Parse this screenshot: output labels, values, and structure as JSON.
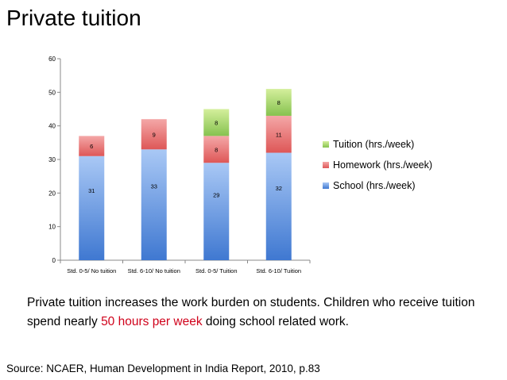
{
  "title": "Private tuition",
  "note": {
    "text_before": "Private tuition increases the work burden on students. Children who receive tuition spend nearly ",
    "highlight": "50 hours per week",
    "text_after": " doing school related work."
  },
  "source": "Source: NCAER, Human Development in India Report, 2010, p.83",
  "colors": {
    "school": "#5b8fdb",
    "homework": "#e76f6f",
    "tuition": "#9fd46b",
    "highlight": "#d0021b"
  },
  "chart_data": {
    "type": "bar",
    "stacked": true,
    "categories": [
      "Std. 0-5/ No tuition",
      "Std. 6-10/ No tuition",
      "Std. 0-5/ Tuition",
      "Std. 6-10/ Tuition"
    ],
    "series": [
      {
        "name": "School (hrs./week)",
        "values": [
          31,
          33,
          29,
          32
        ]
      },
      {
        "name": "Homework (hrs./week)",
        "values": [
          6,
          9,
          8,
          11
        ]
      },
      {
        "name": "Tuition (hrs./week)",
        "values": [
          0,
          0,
          8,
          8
        ]
      }
    ],
    "ylim": [
      0,
      60
    ],
    "yticks": [
      0,
      10,
      20,
      30,
      40,
      50,
      60
    ],
    "grid": false,
    "legend": "right"
  }
}
